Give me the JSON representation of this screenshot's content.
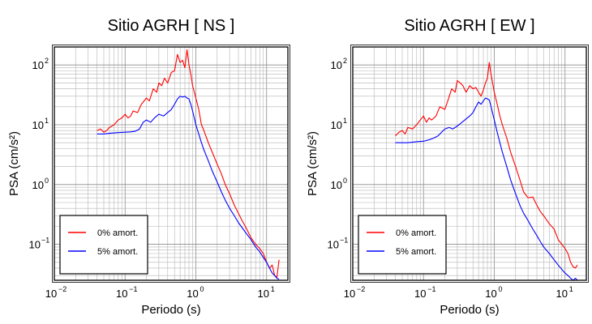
{
  "chart_data": [
    {
      "type": "line",
      "title": "Sitio AGRH [ NS ]",
      "xlabel": "Periodo (s)",
      "ylabel": "PSA (cm/s²)",
      "xscale": "log",
      "yscale": "log",
      "xlim": [
        0.01,
        20
      ],
      "ylim": [
        0.025,
        200
      ],
      "x_ticks": [
        {
          "base": "10",
          "exp": "−2"
        },
        {
          "base": "10",
          "exp": "−1"
        },
        {
          "base": "10",
          "exp": "0"
        },
        {
          "base": "10",
          "exp": "1"
        }
      ],
      "y_ticks": [
        {
          "value": 0.1,
          "base": "10",
          "exp": "−1"
        },
        {
          "value": 1,
          "base": "10",
          "exp": "0"
        },
        {
          "value": 10,
          "base": "10",
          "exp": "1"
        },
        {
          "value": 100,
          "base": "10",
          "exp": "2"
        }
      ],
      "grid": true,
      "legend": "bottom-left",
      "series": [
        {
          "name": "0% amort.",
          "color": "#ff0000",
          "x": [
            0.04,
            0.045,
            0.05,
            0.055,
            0.06,
            0.07,
            0.08,
            0.09,
            0.1,
            0.11,
            0.12,
            0.13,
            0.15,
            0.17,
            0.2,
            0.22,
            0.25,
            0.28,
            0.3,
            0.33,
            0.36,
            0.4,
            0.45,
            0.5,
            0.55,
            0.6,
            0.65,
            0.7,
            0.75,
            0.8,
            0.85,
            0.9,
            1.0,
            1.1,
            1.2,
            1.3,
            1.5,
            1.7,
            2.0,
            2.3,
            2.6,
            3.0,
            3.5,
            4.0,
            4.5,
            5.0,
            6.0,
            7.0,
            8.0,
            9.0,
            10.0,
            11.0,
            12.0,
            13.0,
            14.0,
            15.0
          ],
          "y": [
            8.0,
            8.5,
            7.5,
            8.0,
            9.0,
            10.0,
            12.0,
            13.0,
            15.0,
            13.0,
            14.0,
            17.0,
            16.0,
            22.0,
            28.0,
            25.0,
            40.0,
            35.0,
            50.0,
            45.0,
            60.0,
            50.0,
            75.0,
            80.0,
            150.0,
            110.0,
            120.0,
            90.0,
            180.0,
            100.0,
            70.0,
            45.0,
            28.0,
            18.0,
            10.0,
            8.0,
            5.0,
            3.5,
            2.2,
            1.5,
            1.0,
            0.7,
            0.45,
            0.33,
            0.25,
            0.2,
            0.13,
            0.1,
            0.085,
            0.07,
            0.05,
            0.04,
            0.045,
            0.03,
            0.028,
            0.055
          ]
        },
        {
          "name": "5% amort.",
          "color": "#0000ff",
          "x": [
            0.04,
            0.05,
            0.06,
            0.07,
            0.08,
            0.1,
            0.12,
            0.14,
            0.16,
            0.18,
            0.2,
            0.23,
            0.26,
            0.3,
            0.35,
            0.4,
            0.45,
            0.5,
            0.55,
            0.6,
            0.65,
            0.7,
            0.75,
            0.8,
            0.85,
            0.9,
            1.0,
            1.1,
            1.2,
            1.3,
            1.5,
            1.7,
            2.0,
            2.3,
            2.6,
            3.0,
            3.5,
            4.0,
            4.5,
            5.0,
            6.0,
            7.0,
            8.0,
            9.0,
            10.0,
            11.0,
            12.0,
            13.0,
            14.0,
            15.0
          ],
          "y": [
            7.0,
            7.0,
            7.2,
            7.3,
            7.4,
            7.5,
            7.6,
            7.8,
            8.5,
            11.0,
            12.0,
            11.0,
            13.0,
            15.0,
            14.0,
            16.0,
            18.0,
            22.0,
            27.0,
            30.0,
            29.0,
            30.0,
            28.0,
            27.0,
            22.0,
            17.0,
            10.0,
            7.0,
            5.0,
            3.8,
            2.5,
            1.7,
            1.1,
            0.75,
            0.55,
            0.4,
            0.3,
            0.23,
            0.19,
            0.16,
            0.12,
            0.09,
            0.075,
            0.06,
            0.05,
            0.04,
            0.033,
            0.03,
            0.027,
            0.026
          ]
        }
      ]
    },
    {
      "type": "line",
      "title": "Sitio AGRH [ EW ]",
      "xlabel": "Periodo (s)",
      "ylabel": "PSA (cm/s²)",
      "xscale": "log",
      "yscale": "log",
      "xlim": [
        0.01,
        20
      ],
      "ylim": [
        0.025,
        200
      ],
      "x_ticks": [
        {
          "base": "10",
          "exp": "−2"
        },
        {
          "base": "10",
          "exp": "−1"
        },
        {
          "base": "10",
          "exp": "0"
        },
        {
          "base": "10",
          "exp": "1"
        }
      ],
      "y_ticks": [
        {
          "value": 0.1,
          "base": "10",
          "exp": "−1"
        },
        {
          "value": 1,
          "base": "10",
          "exp": "0"
        },
        {
          "value": 10,
          "base": "10",
          "exp": "1"
        },
        {
          "value": 100,
          "base": "10",
          "exp": "2"
        }
      ],
      "grid": true,
      "legend": "bottom-left",
      "series": [
        {
          "name": "0% amort.",
          "color": "#ff0000",
          "x": [
            0.04,
            0.045,
            0.05,
            0.055,
            0.06,
            0.07,
            0.08,
            0.09,
            0.1,
            0.11,
            0.12,
            0.13,
            0.15,
            0.17,
            0.2,
            0.22,
            0.25,
            0.28,
            0.3,
            0.33,
            0.36,
            0.4,
            0.45,
            0.5,
            0.55,
            0.6,
            0.65,
            0.7,
            0.75,
            0.8,
            0.85,
            0.9,
            1.0,
            1.1,
            1.2,
            1.3,
            1.5,
            1.7,
            2.0,
            2.3,
            2.6,
            3.0,
            3.5,
            4.0,
            4.5,
            5.0,
            6.0,
            7.0,
            8.0,
            9.0,
            10.0,
            11.0,
            12.0,
            13.0,
            14.0,
            15.0
          ],
          "y": [
            6.5,
            7.5,
            8.0,
            7.0,
            9.0,
            8.5,
            10.0,
            12.0,
            14.0,
            11.0,
            13.0,
            12.0,
            14.0,
            20.0,
            18.0,
            25.0,
            40.0,
            35.0,
            55.0,
            50.0,
            45.0,
            35.0,
            45.0,
            40.0,
            42.0,
            35.0,
            30.0,
            38.0,
            50.0,
            60.0,
            110.0,
            70.0,
            35.0,
            22.0,
            14.0,
            10.0,
            6.0,
            3.5,
            2.0,
            1.2,
            0.75,
            0.6,
            0.62,
            0.45,
            0.35,
            0.3,
            0.22,
            0.18,
            0.12,
            0.1,
            0.085,
            0.07,
            0.05,
            0.042,
            0.04,
            0.045
          ]
        },
        {
          "name": "5% amort.",
          "color": "#0000ff",
          "x": [
            0.04,
            0.05,
            0.06,
            0.07,
            0.08,
            0.1,
            0.12,
            0.14,
            0.16,
            0.18,
            0.2,
            0.23,
            0.26,
            0.3,
            0.35,
            0.4,
            0.45,
            0.5,
            0.55,
            0.6,
            0.65,
            0.7,
            0.75,
            0.8,
            0.85,
            0.9,
            1.0,
            1.1,
            1.2,
            1.3,
            1.5,
            1.7,
            2.0,
            2.3,
            2.6,
            3.0,
            3.5,
            4.0,
            4.5,
            5.0,
            6.0,
            7.0,
            8.0,
            9.0,
            10.0,
            11.0,
            12.0,
            13.0,
            14.0,
            15.0
          ],
          "y": [
            5.0,
            5.0,
            5.0,
            5.1,
            5.2,
            5.3,
            5.6,
            6.0,
            6.5,
            7.5,
            8.5,
            9.0,
            8.5,
            9.5,
            11.0,
            12.5,
            14.0,
            16.0,
            20.0,
            24.0,
            22.0,
            25.0,
            28.0,
            27.0,
            26.0,
            20.0,
            12.0,
            7.5,
            5.0,
            3.5,
            2.0,
            1.2,
            0.7,
            0.45,
            0.33,
            0.25,
            0.18,
            0.14,
            0.11,
            0.09,
            0.07,
            0.055,
            0.045,
            0.038,
            0.033,
            0.03,
            0.027,
            0.025,
            0.027,
            0.025
          ]
        }
      ]
    }
  ]
}
